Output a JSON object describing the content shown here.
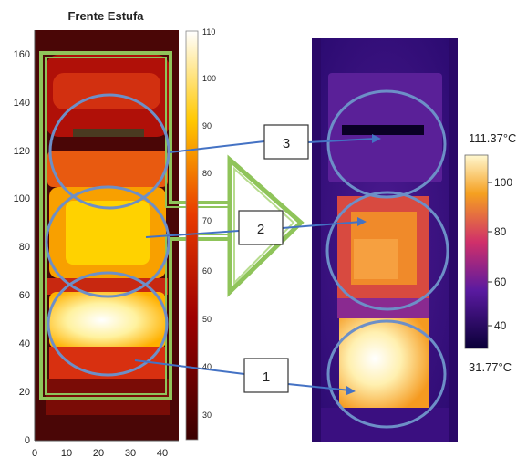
{
  "left_plot": {
    "title": "Frente Estufa",
    "y_ticks": [
      "0",
      "20",
      "40",
      "60",
      "80",
      "100",
      "120",
      "140",
      "160"
    ],
    "x_ticks": [
      "0",
      "10",
      "20",
      "30",
      "40"
    ],
    "colorbar_ticks": [
      "30",
      "40",
      "50",
      "60",
      "70",
      "80",
      "90",
      "100",
      "110"
    ]
  },
  "right_image": {
    "max_temp": "111.37°C",
    "min_temp": "31.77°C",
    "scale_ticks": [
      "100",
      "80",
      "60",
      "40"
    ]
  },
  "callouts": {
    "one": "1",
    "two": "2",
    "three": "3"
  },
  "colors": {
    "circle": "#6d8fc7",
    "arrow_line": "#4472c4",
    "frame": "#8fc45a"
  }
}
